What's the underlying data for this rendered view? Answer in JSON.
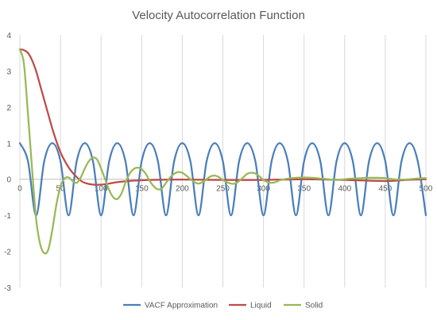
{
  "chart_data": {
    "type": "line",
    "title": "Velocity Autocorrelation Function",
    "xlabel": "",
    "ylabel": "",
    "xlim": [
      0,
      500
    ],
    "ylim": [
      -3,
      4
    ],
    "x_ticks": [
      0,
      50,
      100,
      150,
      200,
      250,
      300,
      350,
      400,
      450,
      500
    ],
    "y_ticks": [
      4,
      3,
      2,
      1,
      0,
      -1,
      -2,
      -3
    ],
    "grid": "vertical",
    "legend": "bottom",
    "series": [
      {
        "name": "VACF Approximation",
        "color": "#4a7ebb",
        "points": [
          [
            0,
            1.0
          ],
          [
            10,
            0.5
          ],
          [
            20,
            -1.0
          ],
          [
            30,
            0.5
          ],
          [
            40,
            1.0
          ],
          [
            50,
            0.5
          ],
          [
            60,
            -1.0
          ],
          [
            70,
            0.5
          ],
          [
            80,
            1.0
          ],
          [
            90,
            0.5
          ],
          [
            100,
            -1.0
          ],
          [
            110,
            0.5
          ],
          [
            120,
            1.0
          ],
          [
            130,
            0.5
          ],
          [
            140,
            -1.0
          ],
          [
            150,
            0.5
          ],
          [
            160,
            1.0
          ],
          [
            170,
            0.5
          ],
          [
            180,
            -1.0
          ],
          [
            190,
            0.5
          ],
          [
            200,
            1.0
          ],
          [
            210,
            0.5
          ],
          [
            220,
            -1.0
          ],
          [
            230,
            0.5
          ],
          [
            240,
            1.0
          ],
          [
            250,
            0.5
          ],
          [
            260,
            -1.0
          ],
          [
            270,
            0.5
          ],
          [
            280,
            1.0
          ],
          [
            290,
            0.5
          ],
          [
            300,
            -1.0
          ],
          [
            310,
            0.5
          ],
          [
            320,
            1.0
          ],
          [
            330,
            0.5
          ],
          [
            340,
            -1.0
          ],
          [
            350,
            0.5
          ],
          [
            360,
            1.0
          ],
          [
            370,
            0.5
          ],
          [
            380,
            -1.0
          ],
          [
            390,
            0.5
          ],
          [
            400,
            1.0
          ],
          [
            410,
            0.5
          ],
          [
            420,
            -1.0
          ],
          [
            430,
            0.5
          ],
          [
            440,
            1.0
          ],
          [
            450,
            0.5
          ],
          [
            460,
            -1.0
          ],
          [
            470,
            0.5
          ],
          [
            480,
            1.0
          ],
          [
            490,
            0.5
          ],
          [
            500,
            -1.0
          ]
        ]
      },
      {
        "name": "Liquid",
        "color": "#be4b48",
        "points": [
          [
            0,
            3.6
          ],
          [
            5,
            3.58
          ],
          [
            10,
            3.5
          ],
          [
            15,
            3.3
          ],
          [
            20,
            3.0
          ],
          [
            25,
            2.6
          ],
          [
            30,
            2.2
          ],
          [
            35,
            1.8
          ],
          [
            40,
            1.4
          ],
          [
            45,
            1.05
          ],
          [
            50,
            0.75
          ],
          [
            55,
            0.52
          ],
          [
            60,
            0.33
          ],
          [
            65,
            0.18
          ],
          [
            70,
            0.06
          ],
          [
            75,
            -0.04
          ],
          [
            80,
            -0.1
          ],
          [
            90,
            -0.15
          ],
          [
            100,
            -0.15
          ],
          [
            110,
            -0.12
          ],
          [
            120,
            -0.08
          ],
          [
            140,
            -0.04
          ],
          [
            160,
            -0.02
          ],
          [
            200,
            -0.01
          ],
          [
            250,
            -0.02
          ],
          [
            300,
            -0.02
          ],
          [
            350,
            0.0
          ],
          [
            400,
            -0.02
          ],
          [
            450,
            -0.05
          ],
          [
            475,
            -0.02
          ],
          [
            500,
            0.0
          ]
        ]
      },
      {
        "name": "Solid",
        "color": "#98b954",
        "points": [
          [
            0,
            3.6
          ],
          [
            5,
            3.2
          ],
          [
            10,
            1.8
          ],
          [
            15,
            0.3
          ],
          [
            20,
            -1.1
          ],
          [
            25,
            -1.8
          ],
          [
            30,
            -2.05
          ],
          [
            35,
            -1.95
          ],
          [
            40,
            -1.4
          ],
          [
            45,
            -0.7
          ],
          [
            50,
            -0.2
          ],
          [
            55,
            0.02
          ],
          [
            60,
            0.05
          ],
          [
            65,
            -0.05
          ],
          [
            70,
            -0.1
          ],
          [
            75,
            0.05
          ],
          [
            80,
            0.3
          ],
          [
            85,
            0.5
          ],
          [
            90,
            0.6
          ],
          [
            95,
            0.55
          ],
          [
            100,
            0.3
          ],
          [
            105,
            0.0
          ],
          [
            110,
            -0.3
          ],
          [
            115,
            -0.5
          ],
          [
            120,
            -0.55
          ],
          [
            125,
            -0.4
          ],
          [
            130,
            -0.1
          ],
          [
            135,
            0.15
          ],
          [
            140,
            0.28
          ],
          [
            145,
            0.32
          ],
          [
            150,
            0.28
          ],
          [
            155,
            0.15
          ],
          [
            160,
            -0.05
          ],
          [
            165,
            -0.2
          ],
          [
            170,
            -0.28
          ],
          [
            175,
            -0.25
          ],
          [
            180,
            -0.1
          ],
          [
            185,
            0.05
          ],
          [
            190,
            0.15
          ],
          [
            195,
            0.2
          ],
          [
            200,
            0.18
          ],
          [
            205,
            0.1
          ],
          [
            210,
            0.0
          ],
          [
            215,
            -0.08
          ],
          [
            220,
            -0.12
          ],
          [
            225,
            -0.08
          ],
          [
            230,
            0.0
          ],
          [
            235,
            0.08
          ],
          [
            240,
            0.1
          ],
          [
            245,
            0.06
          ],
          [
            250,
            -0.02
          ],
          [
            255,
            -0.08
          ],
          [
            260,
            -0.12
          ],
          [
            265,
            -0.12
          ],
          [
            270,
            -0.05
          ],
          [
            275,
            0.05
          ],
          [
            280,
            0.15
          ],
          [
            285,
            0.18
          ],
          [
            290,
            0.16
          ],
          [
            295,
            0.08
          ],
          [
            300,
            -0.02
          ],
          [
            305,
            -0.08
          ],
          [
            310,
            -0.1
          ],
          [
            315,
            -0.08
          ],
          [
            320,
            -0.03
          ],
          [
            330,
            0.02
          ],
          [
            340,
            0.04
          ],
          [
            350,
            0.05
          ],
          [
            360,
            0.04
          ],
          [
            370,
            0.02
          ],
          [
            380,
            0.0
          ],
          [
            390,
            -0.02
          ],
          [
            400,
            0.0
          ],
          [
            410,
            0.02
          ],
          [
            420,
            0.03
          ],
          [
            430,
            0.04
          ],
          [
            440,
            0.04
          ],
          [
            450,
            0.03
          ],
          [
            460,
            0.0
          ],
          [
            470,
            -0.01
          ],
          [
            480,
            0.0
          ],
          [
            490,
            0.02
          ],
          [
            500,
            0.03
          ]
        ]
      }
    ]
  }
}
